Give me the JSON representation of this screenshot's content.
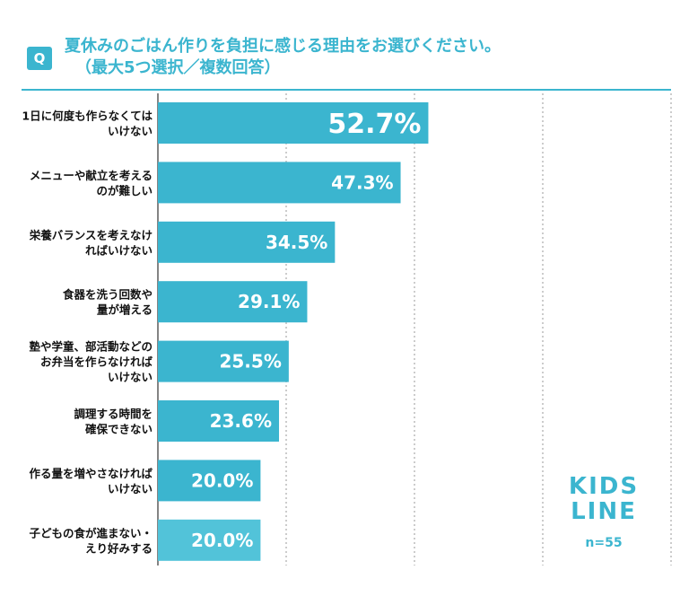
{
  "chart_data": {
    "type": "bar",
    "orientation": "horizontal",
    "title_badge": "Q",
    "title": "夏休みのごはん作りを負担に感じる理由をお選びください。",
    "subtitle": "（最大5つ選択／複数回答）",
    "categories": [
      [
        "1日に何度も作らなくては",
        "いけない"
      ],
      [
        "メニューや献立を考える",
        "のが難しい"
      ],
      [
        "栄養バランスを考えなけ",
        "ればいけない"
      ],
      [
        "食器を洗う回数や",
        "量が増える"
      ],
      [
        "塾や学童、部活動などの",
        "お弁当を作らなければ",
        "いけない"
      ],
      [
        "調理する時間を",
        "確保できない"
      ],
      [
        "作る量を増やさなければ",
        "いけない"
      ],
      [
        "子どもの食が進まない・",
        "えり好みする"
      ]
    ],
    "values": [
      52.7,
      47.3,
      34.5,
      29.1,
      25.5,
      23.6,
      20.0,
      20.0
    ],
    "value_labels": [
      "52.7%",
      "47.3%",
      "34.5%",
      "29.1%",
      "25.5%",
      "23.6%",
      "20.0%",
      "20.0%"
    ],
    "xlim": [
      0,
      100
    ],
    "gridlines": [
      25,
      50,
      75,
      100
    ],
    "grid": true,
    "bar_color": "#3bb5cf",
    "last_bar_color": "#52c3d9",
    "sample_note": "n=55",
    "logo_text": [
      "KIDS",
      "LINE"
    ]
  }
}
